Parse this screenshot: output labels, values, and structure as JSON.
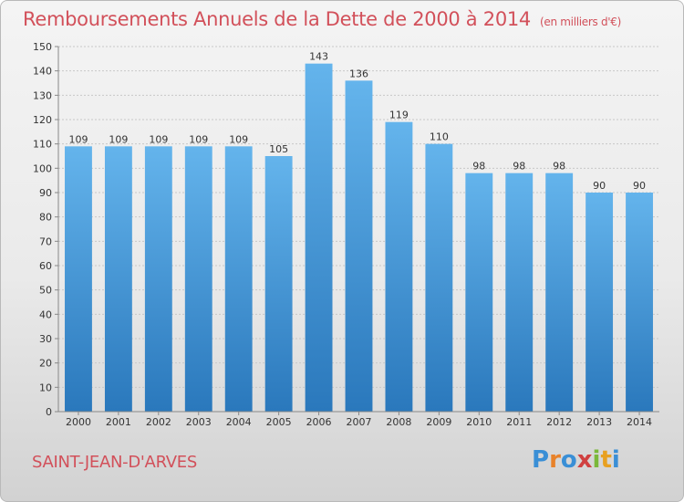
{
  "title": "Remboursements Annuels de la Dette de 2000 à 2014",
  "unit": "(en milliers d'€)",
  "commune": "SAINT-JEAN-D'ARVES",
  "logo": {
    "letters": [
      "P",
      "r",
      "o",
      "x",
      "i",
      "t",
      "i"
    ],
    "colors": [
      "#3a8fd6",
      "#e8822a",
      "#3a8fd6",
      "#d04040",
      "#7ab83a",
      "#e8a020",
      "#3a8fd6"
    ]
  },
  "colors": {
    "bar_top": "#64b4ec",
    "bar_bottom": "#2a78bc",
    "title": "#d2505a"
  },
  "chart_data": {
    "type": "bar",
    "title": "Remboursements Annuels de la Dette de 2000 à 2014",
    "categories": [
      "2000",
      "2001",
      "2002",
      "2003",
      "2004",
      "2005",
      "2006",
      "2007",
      "2008",
      "2009",
      "2010",
      "2011",
      "2012",
      "2013",
      "2014"
    ],
    "values": [
      109,
      109,
      109,
      109,
      109,
      105,
      143,
      136,
      119,
      110,
      98,
      98,
      98,
      90,
      90
    ],
    "ylim": [
      0,
      150
    ],
    "yticks": [
      0,
      10,
      20,
      30,
      40,
      50,
      60,
      70,
      80,
      90,
      100,
      110,
      120,
      130,
      140,
      150
    ],
    "grid": true
  }
}
